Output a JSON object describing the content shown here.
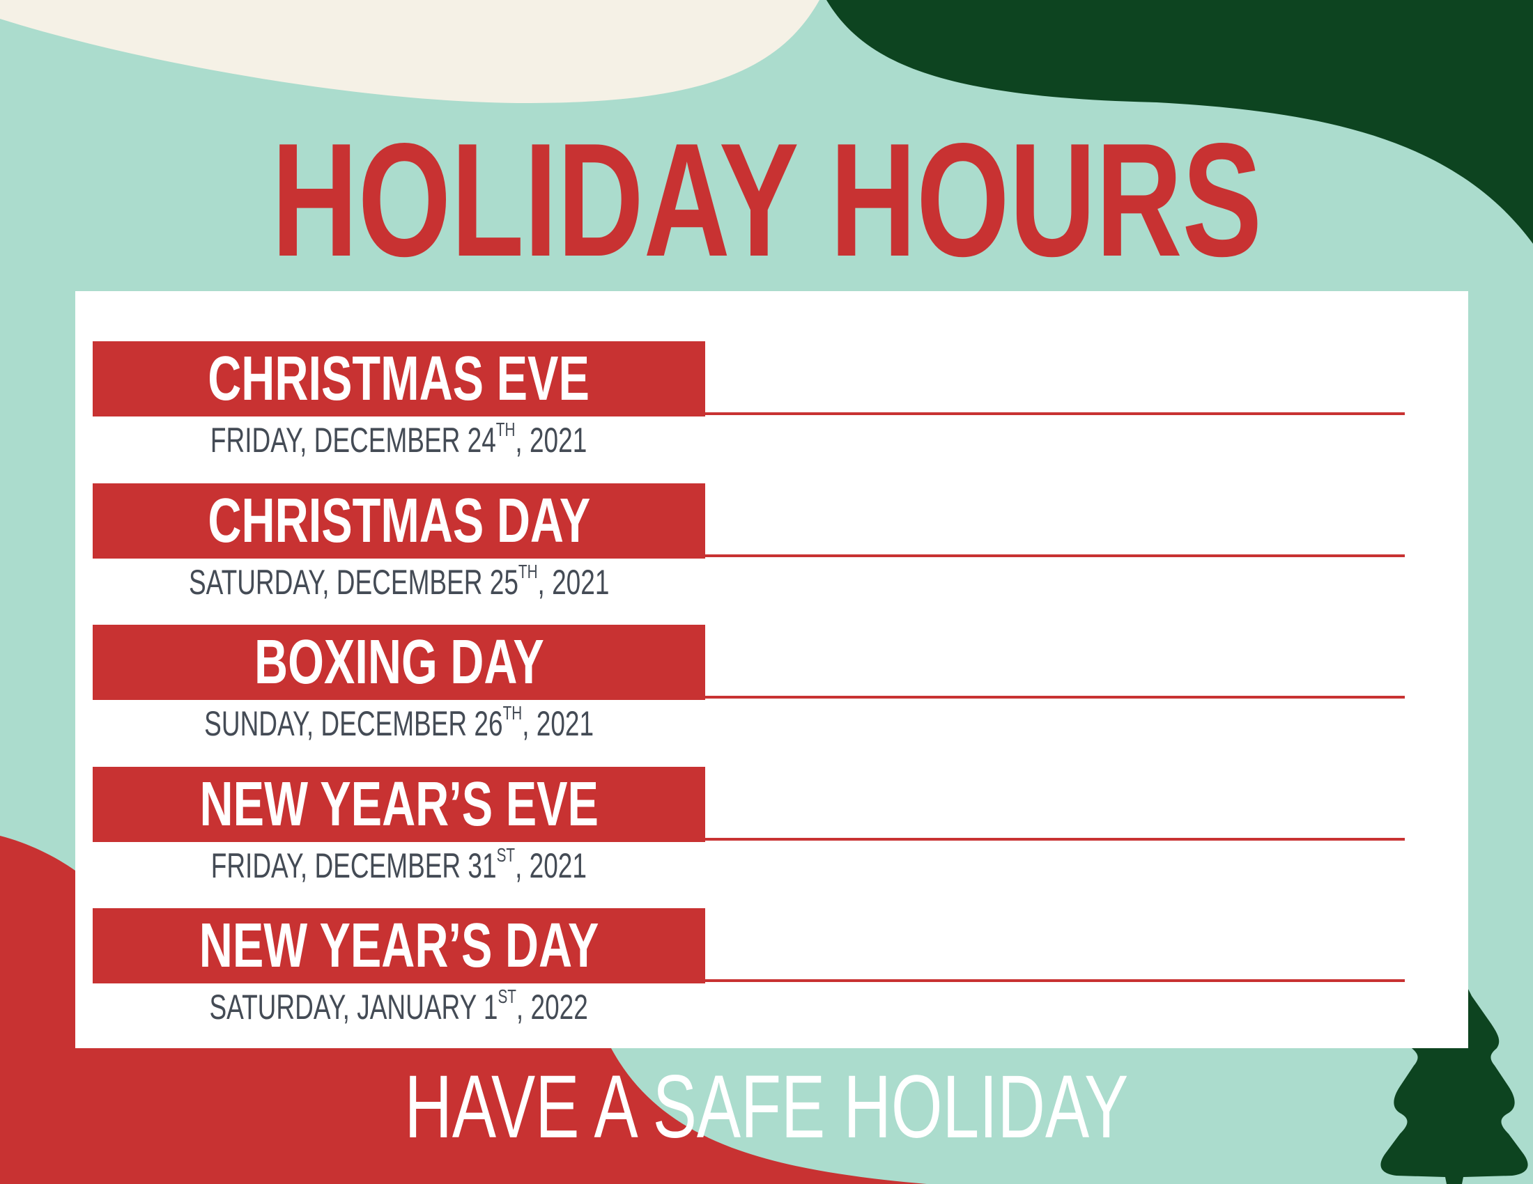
{
  "colors": {
    "background": "#abdccd",
    "accent_red": "#c83232",
    "dark_green": "#0d4420",
    "cream": "#f5f1e6",
    "date_text": "#444b55"
  },
  "title": "HOLIDAY HOURS",
  "holidays": [
    {
      "name": "CHRISTMAS EVE",
      "date_prefix": "FRIDAY, DECEMBER ",
      "day": "24",
      "ordinal": "TH",
      "date_suffix": ", 2021"
    },
    {
      "name": "CHRISTMAS DAY",
      "date_prefix": "SATURDAY, DECEMBER ",
      "day": "25",
      "ordinal": "TH",
      "date_suffix": ", 2021"
    },
    {
      "name": "BOXING DAY",
      "date_prefix": "SUNDAY, DECEMBER ",
      "day": "26",
      "ordinal": "TH",
      "date_suffix": ", 2021"
    },
    {
      "name": "NEW YEAR’S EVE",
      "date_prefix": "FRIDAY, DECEMBER ",
      "day": "31",
      "ordinal": "ST",
      "date_suffix": ", 2021"
    },
    {
      "name": "NEW YEAR’S DAY",
      "date_prefix": "SATURDAY, JANUARY ",
      "day": "1",
      "ordinal": "ST",
      "date_suffix": ", 2022"
    }
  ],
  "footer": "HAVE A SAFE HOLIDAY",
  "decorations": {
    "tree_icon": "christmas-tree-icon"
  }
}
